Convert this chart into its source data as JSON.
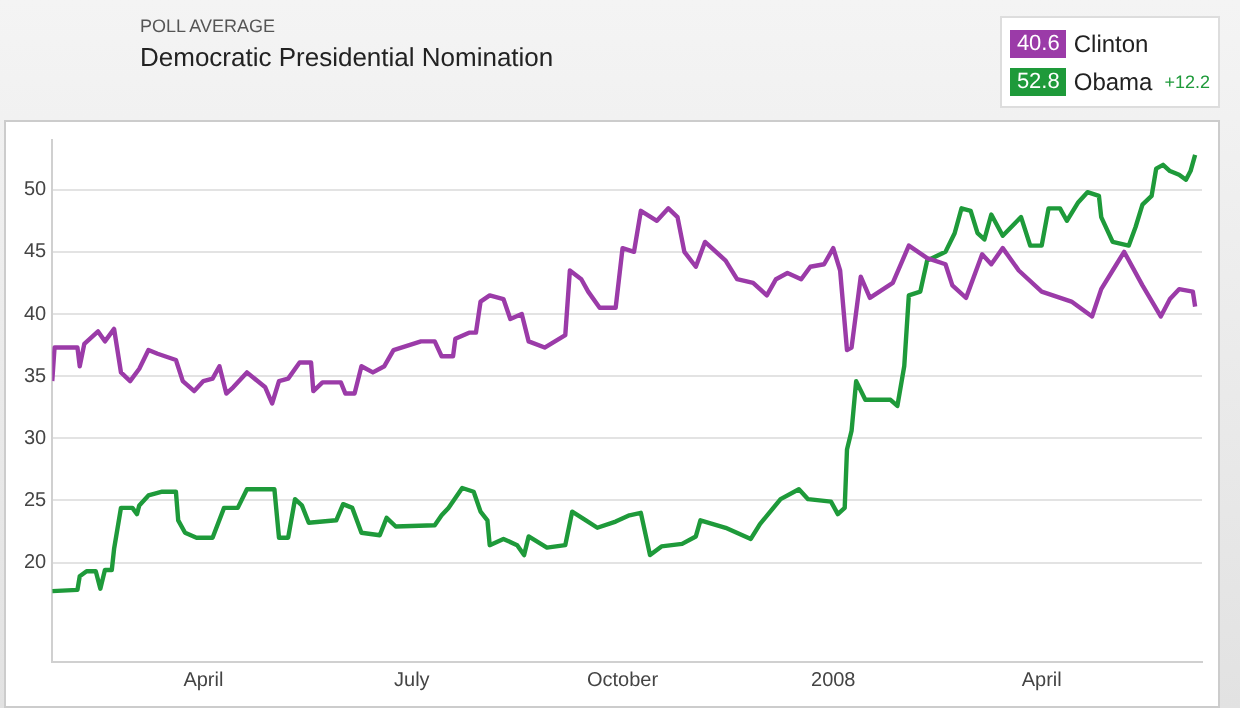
{
  "chart_data": {
    "type": "line",
    "title": "Democratic Presidential Nomination",
    "subtitle": "POLL AVERAGE",
    "annotations": [
      "40.6",
      "52.8",
      "+12.2"
    ],
    "xlim": [
      "2007-01-25",
      "2008-06-10"
    ],
    "xticks": [
      {
        "value": "2007-04-01",
        "label": "April"
      },
      {
        "value": "2007-07-01",
        "label": "July"
      },
      {
        "value": "2007-10-01",
        "label": "October"
      },
      {
        "value": "2008-01-01",
        "label": "2008"
      },
      {
        "value": "2008-04-01",
        "label": "April"
      }
    ],
    "ylim": [
      12,
      54
    ],
    "yticks": [
      20,
      25,
      30,
      35,
      40,
      45,
      50
    ],
    "grid": "y",
    "legend": "top right",
    "marker": "none",
    "line_style": "solid",
    "series": [
      {
        "name": "Clinton",
        "color": "#9b3ba8",
        "x": [
          "2007-01-25",
          "2007-01-26",
          "2007-02-05",
          "2007-02-06",
          "2007-02-08",
          "2007-02-14",
          "2007-02-17",
          "2007-02-21",
          "2007-02-24",
          "2007-02-28",
          "2007-03-04",
          "2007-03-08",
          "2007-03-12",
          "2007-03-20",
          "2007-03-23",
          "2007-03-28",
          "2007-04-01",
          "2007-04-05",
          "2007-04-08",
          "2007-04-11",
          "2007-04-14",
          "2007-04-20",
          "2007-04-28",
          "2007-05-01",
          "2007-05-04",
          "2007-05-08",
          "2007-05-13",
          "2007-05-18",
          "2007-05-19",
          "2007-05-23",
          "2007-05-31",
          "2007-06-02",
          "2007-06-06",
          "2007-06-09",
          "2007-06-14",
          "2007-06-19",
          "2007-06-23",
          "2007-07-05",
          "2007-07-11",
          "2007-07-14",
          "2007-07-19",
          "2007-07-20",
          "2007-07-26",
          "2007-07-29",
          "2007-07-31",
          "2007-08-04",
          "2007-08-10",
          "2007-08-13",
          "2007-08-18",
          "2007-08-21",
          "2007-08-28",
          "2007-09-06",
          "2007-09-08",
          "2007-09-13",
          "2007-09-16",
          "2007-09-21",
          "2007-09-28",
          "2007-10-01",
          "2007-10-06",
          "2007-10-09",
          "2007-10-16",
          "2007-10-21",
          "2007-10-25",
          "2007-10-28",
          "2007-11-02",
          "2007-11-06",
          "2007-11-15",
          "2007-11-20",
          "2007-11-27",
          "2007-12-03",
          "2007-12-07",
          "2007-12-12",
          "2007-12-18",
          "2007-12-22",
          "2007-12-28",
          "2008-01-01",
          "2008-01-04",
          "2008-01-07",
          "2008-01-09",
          "2008-01-13",
          "2008-01-17",
          "2008-01-27",
          "2008-02-03",
          "2008-02-11",
          "2008-02-19",
          "2008-02-22",
          "2008-02-28",
          "2008-03-06",
          "2008-03-10",
          "2008-03-15",
          "2008-03-22",
          "2008-04-01",
          "2008-04-14",
          "2008-04-23",
          "2008-04-27",
          "2008-05-03",
          "2008-05-07",
          "2008-05-15",
          "2008-05-23",
          "2008-05-27",
          "2008-05-31",
          "2008-06-06",
          "2008-06-07"
        ],
        "values": [
          34.6,
          37.3,
          37.3,
          35.8,
          37.6,
          38.6,
          37.8,
          38.8,
          35.3,
          34.6,
          35.6,
          37.1,
          36.8,
          36.3,
          34.6,
          33.8,
          34.6,
          34.8,
          35.8,
          33.6,
          34.1,
          35.3,
          34.1,
          32.8,
          34.6,
          34.8,
          36.1,
          36.1,
          33.8,
          34.5,
          34.5,
          33.6,
          33.6,
          35.8,
          35.3,
          35.8,
          37.1,
          37.8,
          37.8,
          36.6,
          36.6,
          38,
          38.5,
          38.5,
          41,
          41.5,
          41.2,
          39.6,
          40,
          37.8,
          37.3,
          38.3,
          43.5,
          42.8,
          41.8,
          40.5,
          40.5,
          45.3,
          45,
          48.3,
          47.5,
          48.5,
          47.8,
          45,
          43.8,
          45.8,
          44.3,
          42.8,
          42.5,
          41.5,
          42.8,
          43.3,
          42.8,
          43.8,
          44,
          45.3,
          43.5,
          37.1,
          37.3,
          43,
          41.3,
          42.5,
          45.5,
          44.5,
          44,
          42.3,
          41.3,
          44.8,
          44,
          45.3,
          43.5,
          41.8,
          41,
          39.8,
          42,
          43.8,
          45,
          42.3,
          39.8,
          41.2,
          42,
          41.8,
          40.6
        ]
      },
      {
        "name": "Obama",
        "color": "#1e9a3a",
        "x": [
          "2007-01-25",
          "2007-02-05",
          "2007-02-06",
          "2007-02-09",
          "2007-02-13",
          "2007-02-15",
          "2007-02-17",
          "2007-02-20",
          "2007-02-21",
          "2007-02-24",
          "2007-03-01",
          "2007-03-03",
          "2007-03-04",
          "2007-03-08",
          "2007-03-14",
          "2007-03-20",
          "2007-03-21",
          "2007-03-24",
          "2007-03-29",
          "2007-04-05",
          "2007-04-10",
          "2007-04-16",
          "2007-04-20",
          "2007-05-02",
          "2007-05-04",
          "2007-05-08",
          "2007-05-11",
          "2007-05-14",
          "2007-05-17",
          "2007-05-29",
          "2007-06-01",
          "2007-06-05",
          "2007-06-09",
          "2007-06-17",
          "2007-06-20",
          "2007-06-24",
          "2007-07-11",
          "2007-07-14",
          "2007-07-17",
          "2007-07-23",
          "2007-07-28",
          "2007-07-31",
          "2007-08-03",
          "2007-08-04",
          "2007-08-10",
          "2007-08-16",
          "2007-08-19",
          "2007-08-21",
          "2007-08-29",
          "2007-09-06",
          "2007-09-09",
          "2007-09-15",
          "2007-09-20",
          "2007-09-28",
          "2007-10-04",
          "2007-10-09",
          "2007-10-13",
          "2007-10-18",
          "2007-10-27",
          "2007-11-02",
          "2007-11-04",
          "2007-11-15",
          "2007-11-26",
          "2007-11-30",
          "2007-12-09",
          "2007-12-17",
          "2007-12-21",
          "2007-12-31",
          "2008-01-03",
          "2008-01-06",
          "2008-01-07",
          "2008-01-09",
          "2008-01-11",
          "2008-01-15",
          "2008-01-26",
          "2008-01-29",
          "2008-02-01",
          "2008-02-03",
          "2008-02-08",
          "2008-02-11",
          "2008-02-19",
          "2008-02-23",
          "2008-02-26",
          "2008-03-01",
          "2008-03-04",
          "2008-03-07",
          "2008-03-10",
          "2008-03-15",
          "2008-03-23",
          "2008-03-27",
          "2008-04-01",
          "2008-04-04",
          "2008-04-09",
          "2008-04-12",
          "2008-04-17",
          "2008-04-21",
          "2008-04-26",
          "2008-04-27",
          "2008-05-02",
          "2008-05-09",
          "2008-05-12",
          "2008-05-15",
          "2008-05-19",
          "2008-05-21",
          "2008-05-24",
          "2008-05-27",
          "2008-05-31",
          "2008-06-03",
          "2008-06-05",
          "2008-06-07"
        ],
        "values": [
          17.7,
          17.8,
          18.9,
          19.3,
          19.3,
          17.9,
          19.4,
          19.4,
          21.1,
          24.4,
          24.4,
          23.9,
          24.6,
          25.4,
          25.7,
          25.7,
          23.4,
          22.4,
          22,
          22,
          24.4,
          24.4,
          25.9,
          25.9,
          22,
          22,
          25.1,
          24.6,
          23.2,
          23.4,
          24.7,
          24.4,
          22.4,
          22.2,
          23.6,
          22.9,
          23,
          23.8,
          24.4,
          26,
          25.7,
          24.1,
          23.4,
          21.4,
          21.9,
          21.4,
          20.6,
          22.1,
          21.2,
          21.4,
          24.1,
          23.4,
          22.8,
          23.3,
          23.8,
          24,
          20.6,
          21.3,
          21.5,
          22.1,
          23.4,
          22.8,
          21.9,
          23.1,
          25.1,
          25.9,
          25.1,
          24.9,
          23.9,
          24.4,
          29.1,
          30.6,
          34.6,
          33.1,
          33.1,
          32.6,
          35.8,
          41.5,
          41.8,
          44.3,
          45,
          46.5,
          48.5,
          48.3,
          46.5,
          46,
          48,
          46.3,
          47.8,
          45.5,
          45.5,
          48.5,
          48.5,
          47.5,
          49,
          49.8,
          49.5,
          47.8,
          45.8,
          45.5,
          47,
          48.8,
          49.5,
          51.7,
          52,
          51.5,
          51.2,
          50.8,
          51.5,
          52.8
        ]
      }
    ]
  }
}
